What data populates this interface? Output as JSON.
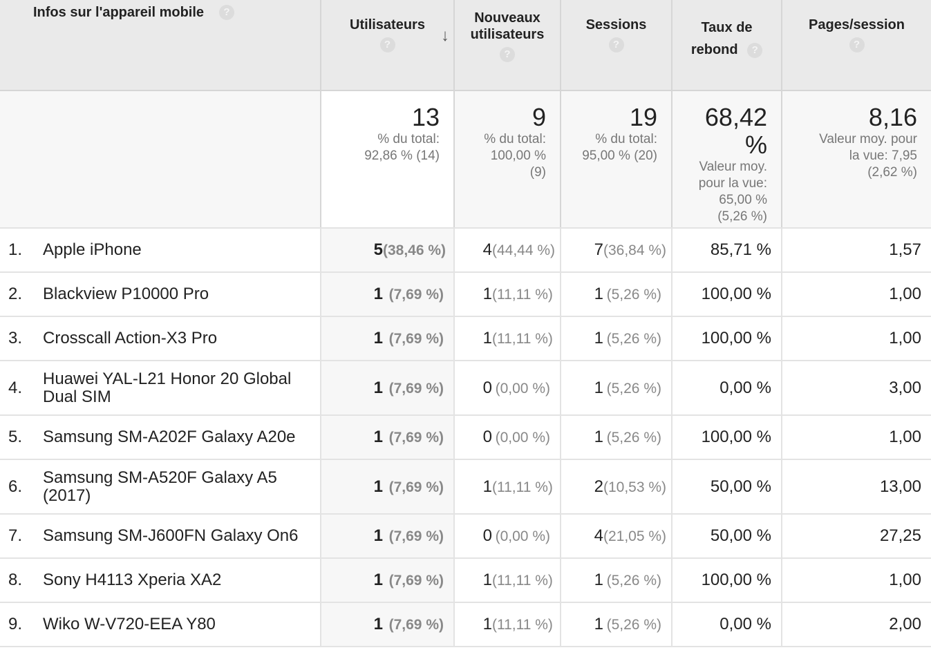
{
  "header": {
    "device": "Infos sur l'appareil mobile",
    "users": "Utilisateurs",
    "new_users_line1": "Nouveaux",
    "new_users_line2": "utilisateurs",
    "sessions": "Sessions",
    "bounce_line1": "Taux de",
    "bounce_line2": "rebond",
    "pages_per_session": "Pages/session",
    "help_glyph": "?",
    "sort_glyph": "↓"
  },
  "totals": {
    "users": {
      "value": "13",
      "sub1": "% du total:",
      "sub2": "92,86 % (14)"
    },
    "new_users": {
      "value": "9",
      "sub1": "% du total:",
      "sub2": "100,00 %",
      "sub3": "(9)"
    },
    "sessions": {
      "value": "19",
      "sub1": "% du total:",
      "sub2": "95,00 % (20)"
    },
    "bounce": {
      "value": "68,42 %",
      "sub1": "Valeur moy.",
      "sub2": "pour la vue:",
      "sub3": "65,00 %",
      "sub4": "(5,26 %)"
    },
    "pages_per_session": {
      "value": "8,16",
      "sub1": "Valeur moy. pour",
      "sub2": "la vue: 7,95",
      "sub3": "(2,62 %)"
    }
  },
  "rows": [
    {
      "rank": "1.",
      "device": "Apple iPhone",
      "users": "5",
      "users_pct": "(38,46 %)",
      "new_users": "4",
      "new_users_pct": "(44,44 %)",
      "sessions": "7",
      "sessions_pct": "(36,84 %)",
      "bounce": "85,71 %",
      "pps": "1,57"
    },
    {
      "rank": "2.",
      "device": "Blackview P10000 Pro",
      "users": "1",
      "users_pct": "(7,69 %)",
      "new_users": "1",
      "new_users_pct": "(11,11 %)",
      "sessions": "1",
      "sessions_pct": "(5,26 %)",
      "bounce": "100,00 %",
      "pps": "1,00"
    },
    {
      "rank": "3.",
      "device": "Crosscall Action-X3 Pro",
      "users": "1",
      "users_pct": "(7,69 %)",
      "new_users": "1",
      "new_users_pct": "(11,11 %)",
      "sessions": "1",
      "sessions_pct": "(5,26 %)",
      "bounce": "100,00 %",
      "pps": "1,00"
    },
    {
      "rank": "4.",
      "device": "Huawei YAL-L21 Honor 20 Global Dual SIM",
      "users": "1",
      "users_pct": "(7,69 %)",
      "new_users": "0",
      "new_users_pct": "(0,00 %)",
      "sessions": "1",
      "sessions_pct": "(5,26 %)",
      "bounce": "0,00 %",
      "pps": "3,00"
    },
    {
      "rank": "5.",
      "device": "Samsung SM-A202F Galaxy A20e",
      "users": "1",
      "users_pct": "(7,69 %)",
      "new_users": "0",
      "new_users_pct": "(0,00 %)",
      "sessions": "1",
      "sessions_pct": "(5,26 %)",
      "bounce": "100,00 %",
      "pps": "1,00"
    },
    {
      "rank": "6.",
      "device": "Samsung SM-A520F Galaxy A5 (2017)",
      "users": "1",
      "users_pct": "(7,69 %)",
      "new_users": "1",
      "new_users_pct": "(11,11 %)",
      "sessions": "2",
      "sessions_pct": "(10,53 %)",
      "bounce": "50,00 %",
      "pps": "13,00"
    },
    {
      "rank": "7.",
      "device": "Samsung SM-J600FN Galaxy On6",
      "users": "1",
      "users_pct": "(7,69 %)",
      "new_users": "0",
      "new_users_pct": "(0,00 %)",
      "sessions": "4",
      "sessions_pct": "(21,05 %)",
      "bounce": "50,00 %",
      "pps": "27,25"
    },
    {
      "rank": "8.",
      "device": "Sony H4113 Xperia XA2",
      "users": "1",
      "users_pct": "(7,69 %)",
      "new_users": "1",
      "new_users_pct": "(11,11 %)",
      "sessions": "1",
      "sessions_pct": "(5,26 %)",
      "bounce": "100,00 %",
      "pps": "1,00"
    },
    {
      "rank": "9.",
      "device": "Wiko W-V720-EEA Y80",
      "users": "1",
      "users_pct": "(7,69 %)",
      "new_users": "1",
      "new_users_pct": "(11,11 %)",
      "sessions": "1",
      "sessions_pct": "(5,26 %)",
      "bounce": "0,00 %",
      "pps": "2,00"
    }
  ]
}
